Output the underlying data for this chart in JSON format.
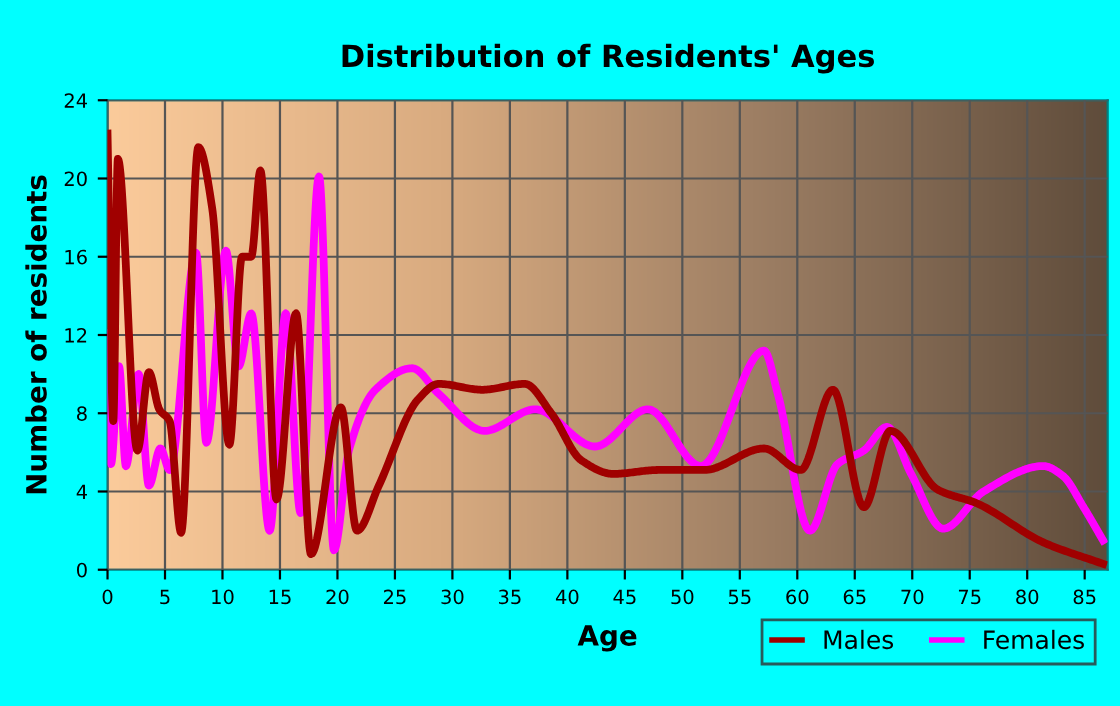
{
  "chart_data": {
    "type": "line",
    "title": "Distribution of Residents' Ages",
    "xlabel": "Age",
    "ylabel": "Number of residents",
    "xlim": [
      0,
      87
    ],
    "xticks": [
      0,
      5,
      10,
      15,
      20,
      25,
      30,
      35,
      40,
      45,
      50,
      55,
      60,
      65,
      70,
      75,
      80,
      85
    ],
    "ylim": [
      0,
      24
    ],
    "yticks": [
      0,
      4,
      8,
      12,
      16,
      20,
      24
    ],
    "grid": true,
    "legend": "bottom right",
    "marker": "none",
    "line_style": "solid",
    "series": [
      {
        "name": "Males",
        "color": "#a00000",
        "x": [
          0,
          0.5,
          0.9,
          2.6,
          3.6,
          4.5,
          5.4,
          6.4,
          7.9,
          9.1,
          10.6,
          11.7,
          12.5,
          13.3,
          14.7,
          16.4,
          17.7,
          20.3,
          21.7,
          23.6,
          27,
          28.8,
          32.6,
          36.3,
          38.6,
          41.2,
          44,
          47.9,
          51.9,
          57.1,
          60.3,
          63.1,
          65.8,
          68.1,
          72.2,
          75.6,
          81.4,
          86.6
        ],
        "values": [
          22.3,
          7.6,
          21,
          6.1,
          10.1,
          8.2,
          7.6,
          1.9,
          21.6,
          18.5,
          6.4,
          16,
          16,
          20.4,
          3.6,
          13.1,
          0.8,
          8.3,
          2.0,
          4.3,
          8.7,
          9.5,
          9.2,
          9.5,
          8.0,
          5.6,
          4.9,
          5.1,
          5.1,
          6.2,
          5.1,
          9.2,
          3.2,
          7.1,
          4.1,
          3.4,
          1.4,
          0.3
        ]
      },
      {
        "name": "Females",
        "color": "#ff00ff",
        "x": [
          0.1,
          0.3,
          1.0,
          1.6,
          2.7,
          3.6,
          4.6,
          5.4,
          7.7,
          8.6,
          10.3,
          11.4,
          12.5,
          14.1,
          15.5,
          16.8,
          18.4,
          19.7,
          21,
          23.3,
          26.5,
          28.8,
          32.8,
          37.2,
          42.4,
          47,
          51.6,
          57.1,
          58.3,
          61.1,
          63.5,
          65.8,
          67.8,
          69.9,
          72.7,
          76.2,
          81.4,
          83.1,
          84.9,
          86.6
        ],
        "values": [
          12.1,
          5.4,
          10.4,
          5.3,
          10,
          4.3,
          6.2,
          5.1,
          16.2,
          6.5,
          16.3,
          10.4,
          13.1,
          2.0,
          13.1,
          2.9,
          20.1,
          1.0,
          6.1,
          9.2,
          10.3,
          9.0,
          7.1,
          8.2,
          6.3,
          8.2,
          5.3,
          11.2,
          9.0,
          2.0,
          5.4,
          6.1,
          7.3,
          4.9,
          2.1,
          4.0,
          5.3,
          4.8,
          3.2,
          1.5
        ]
      }
    ]
  }
}
